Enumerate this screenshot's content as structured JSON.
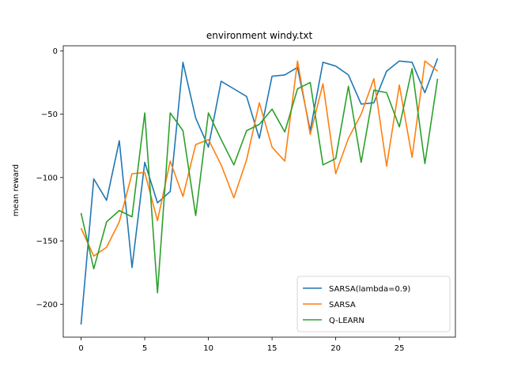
{
  "chart_data": {
    "type": "line",
    "title": "environment windy.txt",
    "xlabel": "",
    "ylabel": "mean reward",
    "xlim": [
      -1.4,
      29.4
    ],
    "ylim": [
      -226,
      4
    ],
    "xticks": [
      0,
      5,
      10,
      15,
      20,
      25
    ],
    "yticks": [
      0,
      -50,
      -100,
      -150,
      -200
    ],
    "ytick_labels": [
      "0",
      "−50",
      "−100",
      "−150",
      "−200"
    ],
    "grid": false,
    "legend_position": "lower-right",
    "x": [
      0,
      1,
      2,
      3,
      4,
      5,
      6,
      7,
      8,
      9,
      10,
      11,
      12,
      13,
      14,
      15,
      16,
      17,
      18,
      19,
      20,
      21,
      22,
      23,
      24,
      25,
      26,
      27,
      28
    ],
    "series": [
      {
        "name": "SARSA(lambda=0.9)",
        "color": "#1f77b4",
        "values": [
          -216,
          -101,
          -118,
          -71,
          -171,
          -88,
          -120,
          -111,
          -9,
          -53,
          -76,
          -24,
          -30,
          -36,
          -69,
          -20,
          -19,
          -13,
          -63,
          -9,
          -12,
          -19,
          -42,
          -41,
          -16,
          -8,
          -9,
          -33,
          -6
        ]
      },
      {
        "name": "SARSA",
        "color": "#ff7f0e",
        "values": [
          -140,
          -162,
          -155,
          -135,
          -97,
          -96,
          -134,
          -87,
          -115,
          -74,
          -70,
          -90,
          -116,
          -86,
          -41,
          -76,
          -87,
          -8,
          -66,
          -26,
          -97,
          -69,
          -50,
          -22,
          -91,
          -27,
          -84,
          -8,
          -16
        ]
      },
      {
        "name": "Q-LEARN",
        "color": "#2ca02c",
        "values": [
          -128,
          -172,
          -135,
          -126,
          -131,
          -49,
          -191,
          -49,
          -63,
          -130,
          -49,
          -70,
          -90,
          -63,
          -58,
          -46,
          -64,
          -30,
          -25,
          -90,
          -85,
          -28,
          -88,
          -31,
          -33,
          -60,
          -14,
          -89,
          -22
        ]
      }
    ]
  }
}
